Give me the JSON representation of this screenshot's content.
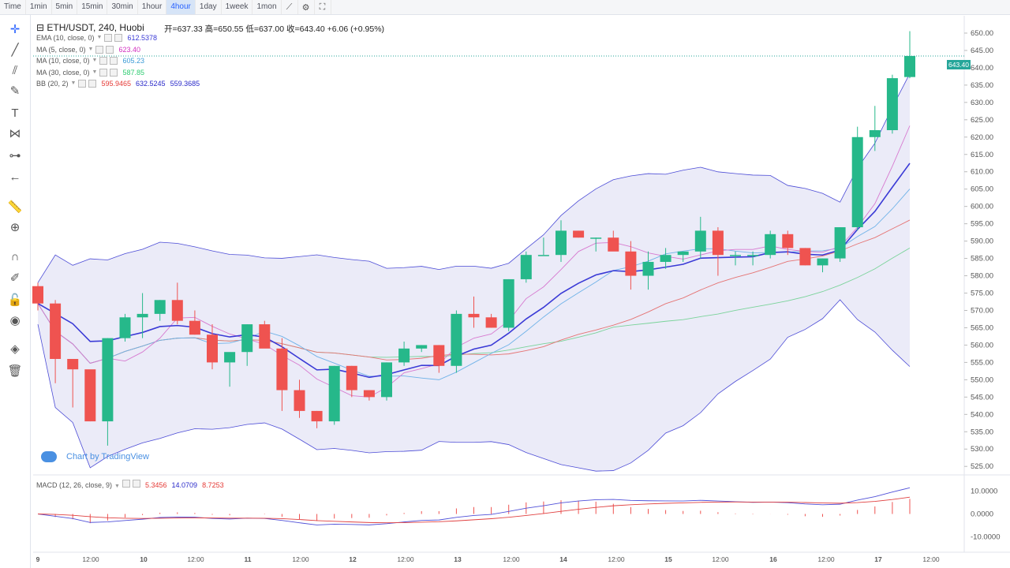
{
  "toolbar": {
    "timeframes": [
      "Time",
      "1min",
      "5min",
      "15min",
      "30min",
      "1hour",
      "4hour",
      "1day",
      "1week",
      "1mon"
    ],
    "active": "4hour",
    "icons": [
      "line-chart-icon",
      "settings-icon",
      "fullscreen-icon"
    ]
  },
  "sidebar": {
    "tools": [
      "crosshair-icon",
      "trend-line-icon",
      "fib-icon",
      "brush-icon",
      "text-icon",
      "pattern-icon",
      "measure-icon",
      "back-arrow-icon",
      "ruler-icon",
      "zoom-in-icon",
      "magnet-icon",
      "lock-pencil-icon",
      "lock-icon",
      "eye-icon",
      "layers-icon",
      "trash-icon"
    ]
  },
  "header": {
    "symbol": "⊟ ETH/USDT, 240, Huobi",
    "ohlc": "开=637.33  高=650.55  低=637.00  收=643.40  +6.06 (+0.95%)"
  },
  "indicators": [
    {
      "name": "EMA (10, close, 0)",
      "values": [
        "612.5378"
      ],
      "colors": [
        "#3a3ad6"
      ]
    },
    {
      "name": "MA (5, close, 0)",
      "values": [
        "623.40"
      ],
      "colors": [
        "#d12fbf"
      ]
    },
    {
      "name": "MA (10, close, 0)",
      "values": [
        "605.23"
      ],
      "colors": [
        "#3a9bd6"
      ]
    },
    {
      "name": "MA (30, close, 0)",
      "values": [
        "587.85"
      ],
      "colors": [
        "#2ecc71"
      ]
    },
    {
      "name": "BB (20, 2)",
      "values": [
        "595.9465",
        "632.5245",
        "559.3685"
      ],
      "colors": [
        "#e53935",
        "#2a2ac9",
        "#2a2ac9"
      ]
    }
  ],
  "macd": {
    "name": "MACD (12, 26, close, 9)",
    "values": [
      "5.3456",
      "14.0709",
      "8.7253"
    ],
    "colors": [
      "#e53935",
      "#2a2ac9",
      "#e53935"
    ]
  },
  "watermark": "Chart by TradingView",
  "last_price_tag": "643.40",
  "price_axis": [
    "650.00",
    "645.00",
    "640.00",
    "635.00",
    "630.00",
    "625.00",
    "620.00",
    "615.00",
    "610.00",
    "605.00",
    "600.00",
    "595.00",
    "590.00",
    "585.00",
    "580.00",
    "575.00",
    "570.00",
    "565.00",
    "560.00",
    "555.00",
    "550.00",
    "545.00",
    "540.00",
    "535.00",
    "530.00",
    "525.00"
  ],
  "macd_axis": [
    "10.0000",
    "0.0000",
    "-10.0000"
  ],
  "time_axis": [
    "9",
    "12:00",
    "10",
    "12:00",
    "11",
    "12:00",
    "12",
    "12:00",
    "13",
    "12:00",
    "14",
    "12:00",
    "15",
    "12:00",
    "16",
    "12:00",
    "17",
    "12:00"
  ],
  "chart_data": {
    "type": "candlestick",
    "y_range": [
      523,
      655
    ],
    "candles": [
      [
        577,
        578,
        570,
        572
      ],
      [
        572,
        573,
        549,
        556
      ],
      [
        556,
        555,
        542,
        553
      ],
      [
        553,
        552,
        538,
        538
      ],
      [
        538,
        562,
        531,
        562
      ],
      [
        562,
        569,
        561,
        568
      ],
      [
        568,
        575,
        562,
        569
      ],
      [
        569,
        573,
        567,
        573
      ],
      [
        573,
        578,
        566,
        567
      ],
      [
        567,
        570,
        563,
        563
      ],
      [
        563,
        566,
        553,
        555
      ],
      [
        555,
        557,
        548,
        558
      ],
      [
        558,
        566,
        554,
        566
      ],
      [
        566,
        567,
        560,
        559
      ],
      [
        559,
        562,
        541,
        547
      ],
      [
        547,
        550,
        539,
        541
      ],
      [
        541,
        541,
        536,
        538
      ],
      [
        538,
        554,
        537,
        554
      ],
      [
        554,
        554,
        545,
        547
      ],
      [
        547,
        547,
        544,
        545
      ],
      [
        545,
        555,
        544,
        555
      ],
      [
        555,
        561,
        554,
        559
      ],
      [
        559,
        560,
        558,
        560
      ],
      [
        560,
        560,
        552,
        554
      ],
      [
        554,
        570,
        552,
        569
      ],
      [
        569,
        574,
        565,
        568
      ],
      [
        568,
        569,
        565,
        565
      ],
      [
        565,
        579,
        564,
        579
      ],
      [
        579,
        587,
        578,
        586
      ],
      [
        586,
        591,
        586,
        586
      ],
      [
        586,
        596,
        584,
        593
      ],
      [
        593,
        593,
        591,
        591
      ],
      [
        591,
        591,
        587,
        591
      ],
      [
        591,
        593,
        588,
        587
      ],
      [
        587,
        590,
        576,
        580
      ],
      [
        580,
        587,
        576,
        584
      ],
      [
        584,
        588,
        582,
        586
      ],
      [
        586,
        587,
        584,
        587
      ],
      [
        587,
        597,
        585,
        593
      ],
      [
        593,
        594,
        580,
        586
      ],
      [
        586,
        587,
        583,
        586
      ],
      [
        586,
        587,
        583,
        586
      ],
      [
        586,
        593,
        585,
        592
      ],
      [
        592,
        593,
        586,
        588
      ],
      [
        588,
        588,
        583,
        583
      ],
      [
        583,
        585,
        581,
        585
      ],
      [
        585,
        594,
        584,
        594
      ],
      [
        594,
        623,
        593,
        620
      ],
      [
        620,
        629,
        616,
        622
      ],
      [
        622,
        638,
        621,
        637
      ],
      [
        637.33,
        650.55,
        637,
        643.4
      ]
    ]
  }
}
